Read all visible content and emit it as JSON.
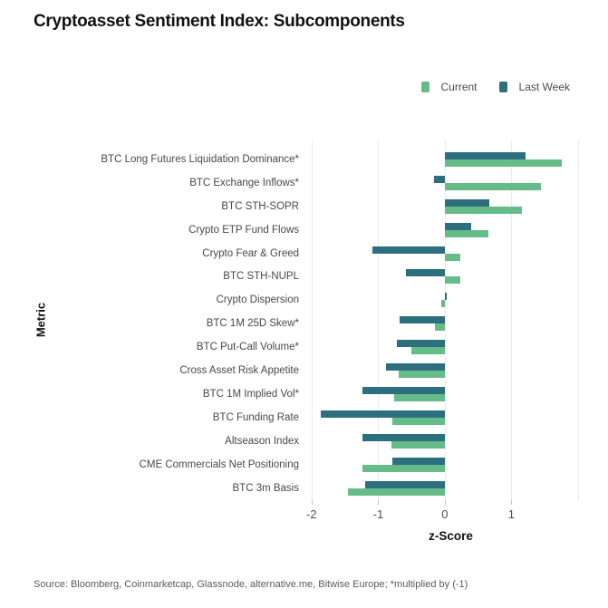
{
  "header": {
    "title": "Cryptoasset Sentiment Index: Subcomponents"
  },
  "chart_data": {
    "type": "bar",
    "orientation": "horizontal",
    "title": "Cryptoasset Sentiment Index: Subcomponents",
    "xlabel": "z-Score",
    "ylabel": "Metric",
    "xlim": [
      -2.12,
      2.3
    ],
    "xticks": [
      -2,
      -1,
      0,
      1
    ],
    "gridlines": [
      -2,
      -1,
      0,
      1,
      2
    ],
    "grid": "vertical-only",
    "legend_position": "top-right",
    "categories": [
      "BTC Long Futures Liquidation Dominance*",
      "BTC Exchange Inflows*",
      "BTC STH-SOPR",
      "Crypto ETP Fund Flows",
      "Crypto Fear & Greed",
      "BTC STH-NUPL",
      "Crypto Dispersion",
      "BTC 1M 25D Skew*",
      "BTC Put-Call Volume*",
      "Cross Asset Risk Appetite",
      "BTC 1M Implied Vol*",
      "BTC Funding Rate",
      "Altseason Index",
      "CME Commercials Net Positioning",
      "BTC 3m Basis"
    ],
    "series": [
      {
        "name": "Current",
        "color": "#66bc88",
        "values": [
          1.76,
          1.44,
          1.16,
          0.66,
          0.24,
          0.24,
          -0.05,
          -0.15,
          -0.5,
          -0.69,
          -0.76,
          -0.79,
          -0.8,
          -1.24,
          -1.45
        ]
      },
      {
        "name": "Last Week",
        "color": "#2d6f7f",
        "values": [
          1.21,
          -0.16,
          0.67,
          0.4,
          -1.09,
          -0.58,
          0.03,
          -0.68,
          -0.72,
          -0.88,
          -1.23,
          -1.86,
          -1.23,
          -0.79,
          -1.2
        ]
      }
    ],
    "row_series_order_top_to_bottom": [
      "Last Week",
      "Current"
    ]
  },
  "footer": {
    "source": "Source: Bloomberg, Coinmarketcap, Glassnode, alternative.me, Bitwise Europe; *multiplied by (-1)"
  },
  "style": {
    "gridline_color": "#ebebeb",
    "tick_color": "#c2c2c2",
    "label_color": "#484848",
    "title_color": "#121212"
  }
}
